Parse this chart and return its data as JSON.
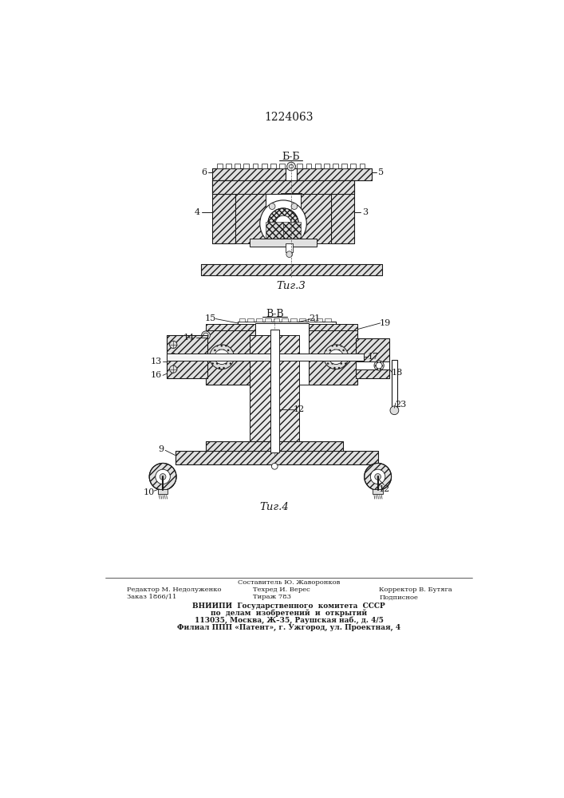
{
  "patent_number": "1224063",
  "fig3_label": "Τиг.3",
  "fig4_label": "Τиг.4",
  "section_bb": "Б-Б",
  "section_vv": "В-В",
  "footer_line1_left": "Редактор М. Недолуженко",
  "footer_line1_center": "Составитель Ю. Жаворонков",
  "footer_line1_right": "Корректор В. Бутяга",
  "footer_line2_left": "Заказ 1866/11",
  "footer_line2_center": "Техред И. Верес",
  "footer_line2_right": "Подписное",
  "footer_line3_left": "Тираж 783",
  "footer_vniip1": "ВНИИПИ  Государственного  комитета  СССР",
  "footer_vniip2": "по  делам  изобретений  и  открытий",
  "footer_vniip3": "113035, Москва, Ж–35, Раушская наб., д. 4/5",
  "footer_vniip4": "Филиал ППП «Патент», г. Ужгород, ул. Проектная, 4",
  "bg_color": "#ffffff",
  "line_color": "#1a1a1a"
}
